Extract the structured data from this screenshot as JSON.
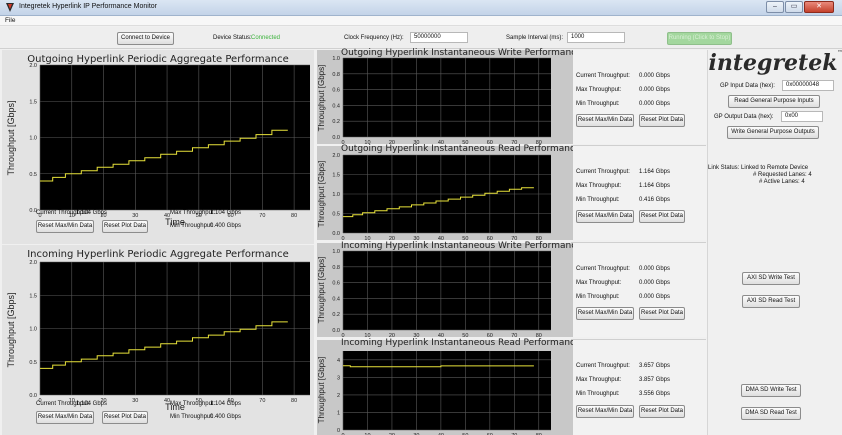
{
  "window": {
    "title": "Integretek Hyperlink IP Performance Monitor",
    "controls": [
      "–",
      "▭",
      "✕"
    ]
  },
  "menu": {
    "file": "File"
  },
  "toolbar": {
    "connect_button": "Connect to Device",
    "device_status_label": "Device Status:",
    "device_status_value": "Connected",
    "clock_label": "Clock Frequency (Hz):",
    "clock_value": "50000000",
    "sample_label": "Sample Interval (ms):",
    "sample_value": "1000",
    "running_button": "Running (Click to Stop)"
  },
  "colors": {
    "plot_bg": "#000000",
    "trace": "#e8e23a",
    "grid": "#5a5a5a",
    "status_ok": "#3cb33c"
  },
  "chart_data": [
    {
      "id": "outgoing-aggregate",
      "type": "line",
      "title": "Outgoing Hyperlink Periodic Aggregate Performance",
      "xlabel": "Time",
      "ylabel": "Throughput [Gbps]",
      "xlim": [
        0,
        85
      ],
      "ylim": [
        0,
        2.0
      ],
      "xticks": [
        "0",
        "10",
        "20",
        "30",
        "40",
        "50",
        "60",
        "70",
        "80"
      ],
      "yticks": [
        "0.0",
        "0.5",
        "1.0",
        "1.5",
        "2.0"
      ],
      "series": [
        {
          "x": [
            0,
            4,
            4,
            8,
            8,
            13,
            13,
            18,
            18,
            23,
            23,
            28,
            28,
            33,
            33,
            38,
            38,
            43,
            43,
            48,
            48,
            53,
            53,
            58,
            58,
            63,
            63,
            68,
            68,
            73,
            73,
            78
          ],
          "values": [
            0.4,
            0.4,
            0.45,
            0.45,
            0.5,
            0.5,
            0.54,
            0.54,
            0.59,
            0.59,
            0.63,
            0.63,
            0.68,
            0.68,
            0.72,
            0.72,
            0.77,
            0.77,
            0.81,
            0.81,
            0.86,
            0.86,
            0.9,
            0.9,
            0.95,
            0.95,
            0.99,
            0.99,
            1.04,
            1.04,
            1.1,
            1.1
          ]
        }
      ],
      "stats": {
        "current_label": "Current Throughput:",
        "current": "1.104 Gbps",
        "max_label": "Max Throughput:",
        "max": "1.104 Gbps",
        "min_label": "Min Throughput:",
        "min": "0.400 Gbps"
      },
      "reset_minmax": "Reset Max/Min Data",
      "reset_plot": "Reset Plot Data"
    },
    {
      "id": "incoming-aggregate",
      "type": "line",
      "title": "Incoming Hyperlink Periodic Aggregate Performance",
      "xlabel": "Time",
      "ylabel": "Throughput [Gbps]",
      "xlim": [
        0,
        85
      ],
      "ylim": [
        0,
        2.0
      ],
      "xticks": [
        "0",
        "10",
        "20",
        "30",
        "40",
        "50",
        "60",
        "70",
        "80"
      ],
      "yticks": [
        "0.0",
        "0.5",
        "1.0",
        "1.5",
        "2.0"
      ],
      "series": [
        {
          "x": [
            0,
            4,
            4,
            8,
            8,
            13,
            13,
            18,
            18,
            23,
            23,
            28,
            28,
            33,
            33,
            38,
            38,
            43,
            43,
            48,
            48,
            53,
            53,
            58,
            58,
            63,
            63,
            68,
            68,
            73,
            73,
            78
          ],
          "values": [
            0.4,
            0.4,
            0.45,
            0.45,
            0.5,
            0.5,
            0.54,
            0.54,
            0.59,
            0.59,
            0.63,
            0.63,
            0.68,
            0.68,
            0.72,
            0.72,
            0.77,
            0.77,
            0.81,
            0.81,
            0.86,
            0.86,
            0.9,
            0.9,
            0.95,
            0.95,
            0.99,
            0.99,
            1.04,
            1.04,
            1.1,
            1.1
          ]
        }
      ],
      "stats": {
        "current_label": "Current Throughput:",
        "current": "1.104 Gbps",
        "max_label": "Max Throughput:",
        "max": "1.104 Gbps",
        "min_label": "Min Throughput:",
        "min": "0.400 Gbps"
      },
      "reset_minmax": "Reset Max/Min Data",
      "reset_plot": "Reset Plot Data"
    },
    {
      "id": "outgoing-write",
      "type": "line",
      "title": "Outgoing Hyperlink Instantaneous Write Performance",
      "xlabel": "",
      "ylabel": "Throughput [Gbps]",
      "xlim": [
        0,
        85
      ],
      "ylim": [
        0,
        1.0
      ],
      "xticks": [
        "0",
        "10",
        "20",
        "30",
        "40",
        "50",
        "60",
        "70",
        "80"
      ],
      "yticks": [
        "0.0",
        "0.2",
        "0.4",
        "0.6",
        "0.8",
        "1.0"
      ],
      "series": [
        {
          "x": [],
          "values": []
        }
      ],
      "stats": {
        "current_label": "Current Throughput:",
        "current": "0.000 Gbps",
        "max_label": "Max Throughput:",
        "max": "0.000 Gbps",
        "min_label": "Min Throughput:",
        "min": "0.000 Gbps"
      },
      "reset_minmax": "Reset Max/Min Data",
      "reset_plot": "Reset Plot Data"
    },
    {
      "id": "outgoing-read",
      "type": "line",
      "title": "Outgoing Hyperlink Instantaneous Read Performance",
      "xlabel": "",
      "ylabel": "Throughput [Gbps]",
      "xlim": [
        0,
        85
      ],
      "ylim": [
        0,
        2.0
      ],
      "xticks": [
        "0",
        "10",
        "20",
        "30",
        "40",
        "50",
        "60",
        "70",
        "80"
      ],
      "yticks": [
        "0.0",
        "0.5",
        "1.0",
        "1.5",
        "2.0"
      ],
      "series": [
        {
          "x": [
            0,
            4,
            4,
            8,
            8,
            13,
            13,
            18,
            18,
            23,
            23,
            28,
            28,
            33,
            33,
            38,
            38,
            43,
            43,
            48,
            48,
            53,
            53,
            58,
            58,
            63,
            63,
            68,
            68,
            73,
            73,
            78
          ],
          "values": [
            0.42,
            0.42,
            0.47,
            0.47,
            0.52,
            0.52,
            0.57,
            0.57,
            0.62,
            0.62,
            0.67,
            0.67,
            0.72,
            0.72,
            0.77,
            0.77,
            0.82,
            0.82,
            0.87,
            0.87,
            0.92,
            0.92,
            0.97,
            0.97,
            1.02,
            1.02,
            1.07,
            1.07,
            1.12,
            1.12,
            1.16,
            1.16
          ]
        }
      ],
      "stats": {
        "current_label": "Current Throughput:",
        "current": "1.164 Gbps",
        "max_label": "Max Throughput:",
        "max": "1.164 Gbps",
        "min_label": "Min Throughput:",
        "min": "0.416 Gbps"
      },
      "reset_minmax": "Reset Max/Min Data",
      "reset_plot": "Reset Plot Data"
    },
    {
      "id": "incoming-write",
      "type": "line",
      "title": "Incoming Hyperlink Instantaneous Write Performance",
      "xlabel": "",
      "ylabel": "Throughput [Gbps]",
      "xlim": [
        0,
        85
      ],
      "ylim": [
        0,
        1.0
      ],
      "xticks": [
        "0",
        "10",
        "20",
        "30",
        "40",
        "50",
        "60",
        "70",
        "80"
      ],
      "yticks": [
        "0.0",
        "0.2",
        "0.4",
        "0.6",
        "0.8",
        "1.0"
      ],
      "series": [
        {
          "x": [],
          "values": []
        }
      ],
      "stats": {
        "current_label": "Current Throughput:",
        "current": "0.000 Gbps",
        "max_label": "Max Throughput:",
        "max": "0.000 Gbps",
        "min_label": "Min Throughput:",
        "min": "0.000 Gbps"
      },
      "reset_minmax": "Reset Max/Min Data",
      "reset_plot": "Reset Plot Data"
    },
    {
      "id": "incoming-read",
      "type": "line",
      "title": "Incoming Hyperlink Instantaneous Read Performance",
      "xlabel": "",
      "ylabel": "Throughput [Gbps]",
      "xlim": [
        0,
        85
      ],
      "ylim": [
        0,
        4.5
      ],
      "xticks": [
        "0",
        "10",
        "20",
        "30",
        "40",
        "50",
        "60",
        "70",
        "80"
      ],
      "yticks": [
        "0",
        "1",
        "2",
        "3",
        "4"
      ],
      "series": [
        {
          "x": [
            0,
            3,
            3,
            40,
            40,
            78
          ],
          "values": [
            3.66,
            3.66,
            3.6,
            3.6,
            3.65,
            3.65
          ]
        }
      ],
      "stats": {
        "current_label": "Current Throughput:",
        "current": "3.657 Gbps",
        "max_label": "Max Throughput:",
        "max": "3.857 Gbps",
        "min_label": "Min Throughput:",
        "min": "3.556 Gbps"
      },
      "reset_minmax": "Reset Max/Min Data",
      "reset_plot": "Reset Plot Data"
    }
  ],
  "right": {
    "logo_text": "integretek",
    "logo_mark": "™",
    "gp_input_label": "GP Input Data (hex):",
    "gp_input_value": "0x00000048",
    "read_gp_button": "Read General Purpose Inputs",
    "gp_output_label": "GP Output Data (hex):",
    "gp_output_value": "0x00",
    "write_gp_button": "Write General Purpose Outputs",
    "link_status_line1": "Link Status: Linked to Remote Device",
    "link_status_line2": "# Requested Lanes: 4",
    "link_status_line3": "# Active Lanes: 4",
    "axi_write_button": "AXI SD Write Test",
    "axi_read_button": "AXI SD Read Test",
    "dma_write_button": "DMA SD Write Test",
    "dma_read_button": "DMA SD Read Test"
  }
}
